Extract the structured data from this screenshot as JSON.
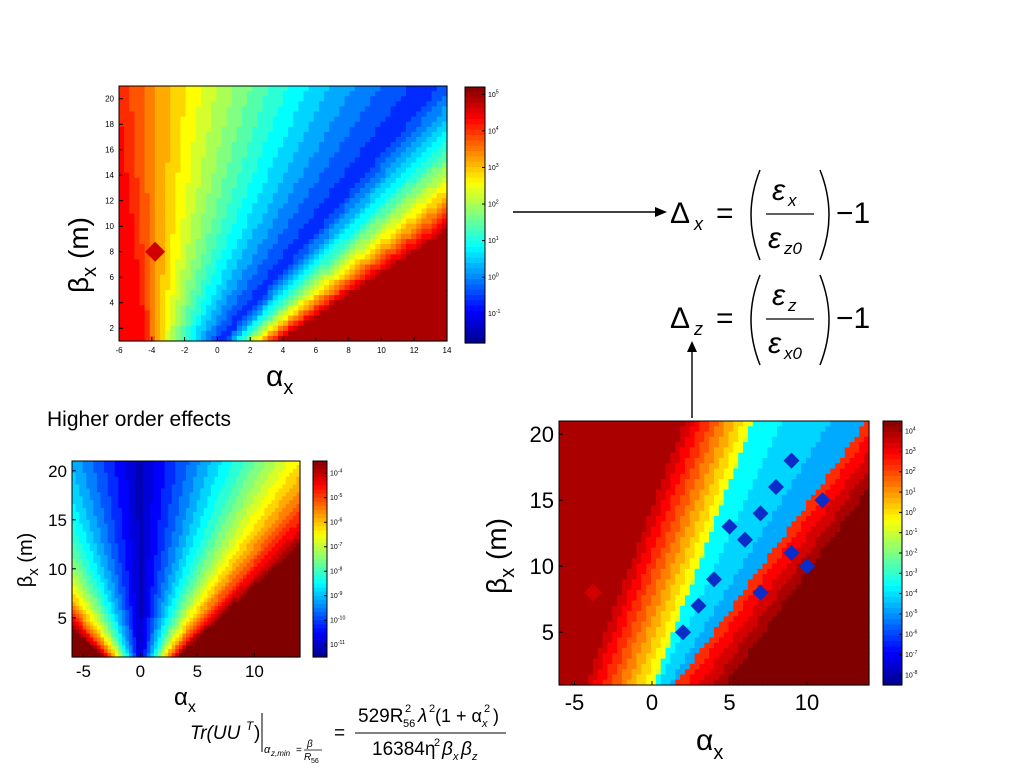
{
  "section_label": "Higher order effects",
  "colors": {
    "colormap": [
      "#00008f",
      "#0000ff",
      "#0080ff",
      "#00ffff",
      "#80ff80",
      "#ffff00",
      "#ff8000",
      "#ff0000",
      "#800000"
    ],
    "arrow": "#000000"
  },
  "equations": {
    "delta_x": {
      "lhs": "Δ",
      "lhs_sub": "x",
      "eq": "=",
      "num": "ε",
      "num_sub": "x",
      "den": "ε",
      "den_sub": "z0",
      "tail": "−1"
    },
    "delta_z": {
      "lhs": "Δ",
      "lhs_sub": "z",
      "eq": "=",
      "num": "ε",
      "num_sub": "z",
      "den": "ε",
      "den_sub": "x0",
      "tail": "−1"
    },
    "trace": {
      "lhs": "Tr(UU",
      "lhs_sup": "T",
      "lhs_close": ")",
      "cond": "α",
      "cond_sub": "z,min",
      "cond_eq": "=",
      "cond_num": "β",
      "cond_den": "R",
      "cond_den_sub": "56",
      "eq": "=",
      "num": "529R",
      "num_sub": "56",
      "num_sup": "2",
      "num_lambda": "λ",
      "num_lambda_sup": "2",
      "num_open": "(1 + α",
      "num_alpha_sub": "x",
      "num_alpha_sup": "2",
      "num_close": ")",
      "den": "16384η",
      "den_sup": "2",
      "den_beta1": "β",
      "den_beta1_sub": "x",
      "den_beta2": "β",
      "den_beta2_sub": "z"
    }
  },
  "chart_data": [
    {
      "id": "top",
      "type": "heatmap",
      "xlabel": "α",
      "xlabel_sub": "x",
      "ylabel": "β",
      "ylabel_sub": "x",
      "ylabel_unit": " (m)",
      "xlim": [
        -6,
        14
      ],
      "ylim": [
        1,
        21
      ],
      "xticks": [
        "-6",
        "-4",
        "-2",
        "0",
        "2",
        "4",
        "6",
        "8",
        "10",
        "12",
        "14"
      ],
      "yticks": [
        "2",
        "4",
        "6",
        "8",
        "10",
        "12",
        "14",
        "16",
        "18",
        "20"
      ],
      "colorbar_ticks": [
        {
          "base": "10",
          "exp": "5"
        },
        {
          "base": "10",
          "exp": "4"
        },
        {
          "base": "10",
          "exp": "3"
        },
        {
          "base": "10",
          "exp": "2"
        },
        {
          "base": "10",
          "exp": "1"
        },
        {
          "base": "10",
          "exp": "0"
        },
        {
          "base": "10",
          "exp": "-1"
        }
      ],
      "colorbar_log_range": [
        -1.8,
        5.2
      ],
      "pattern": "valley",
      "valley_alpha_min": -0.5,
      "valley_alpha_slope": 0.0,
      "valley_gain": 0.62,
      "marker": {
        "x": -3.8,
        "y": 8
      }
    },
    {
      "id": "bottom-left",
      "type": "heatmap",
      "xlabel": "α",
      "xlabel_sub": "x",
      "ylabel": "β",
      "ylabel_sub": "x",
      "ylabel_unit": " (m)",
      "xlim": [
        -6,
        14
      ],
      "ylim": [
        1,
        21
      ],
      "xticks": [
        "-5",
        "0",
        "5",
        "10"
      ],
      "yticks": [
        "5",
        "10",
        "15",
        "20"
      ],
      "colorbar_ticks": [
        {
          "base": "10",
          "exp": "-4"
        },
        {
          "base": "10",
          "exp": "-5"
        },
        {
          "base": "10",
          "exp": "-6"
        },
        {
          "base": "10",
          "exp": "-7"
        },
        {
          "base": "10",
          "exp": "-8"
        },
        {
          "base": "10",
          "exp": "-9"
        },
        {
          "base": "10",
          "exp": "-10"
        },
        {
          "base": "10",
          "exp": "-11"
        }
      ],
      "colorbar_log_range": [
        -11.5,
        -3.5
      ],
      "pattern": "cone"
    },
    {
      "id": "bottom-right",
      "type": "heatmap",
      "xlabel": "α",
      "xlabel_sub": "x",
      "ylabel": "β",
      "ylabel_sub": "x",
      "ylabel_unit": " (m)",
      "xlim": [
        -6,
        14
      ],
      "ylim": [
        1,
        21
      ],
      "xticks": [
        "-5",
        "0",
        "5",
        "10"
      ],
      "yticks": [
        "5",
        "10",
        "15",
        "20"
      ],
      "colorbar_ticks": [
        {
          "base": "10",
          "exp": "4"
        },
        {
          "base": "10",
          "exp": "3"
        },
        {
          "base": "10",
          "exp": "2"
        },
        {
          "base": "10",
          "exp": "1"
        },
        {
          "base": "10",
          "exp": "0"
        },
        {
          "base": "10",
          "exp": "-1"
        },
        {
          "base": "10",
          "exp": "-2"
        },
        {
          "base": "10",
          "exp": "-3"
        },
        {
          "base": "10",
          "exp": "-4"
        },
        {
          "base": "10",
          "exp": "-5"
        },
        {
          "base": "10",
          "exp": "-6"
        },
        {
          "base": "10",
          "exp": "-7"
        },
        {
          "base": "10",
          "exp": "-8"
        }
      ],
      "colorbar_log_range": [
        -8.5,
        4.5
      ],
      "pattern": "band",
      "marker": {
        "x": -3.8,
        "y": 8
      },
      "dots": [
        [
          9,
          18
        ],
        [
          4,
          9
        ],
        [
          6,
          12
        ],
        [
          7,
          14
        ],
        [
          8,
          16
        ],
        [
          9,
          11
        ],
        [
          7,
          8
        ],
        [
          10,
          10
        ],
        [
          11,
          15
        ],
        [
          3,
          7
        ],
        [
          2,
          5
        ],
        [
          5,
          13
        ]
      ]
    }
  ]
}
